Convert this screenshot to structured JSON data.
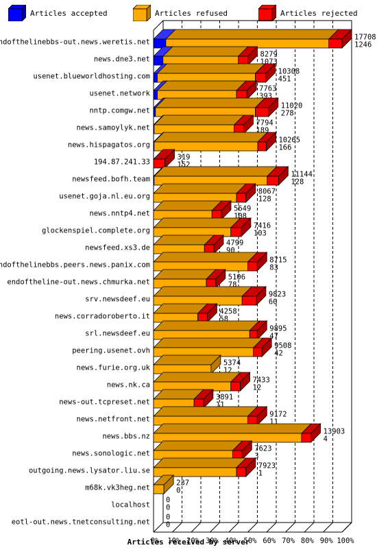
{
  "chart_data": {
    "type": "bar",
    "orientation": "horizontal",
    "stacked": true,
    "xlabel": "Articles received by server",
    "xlim": [
      0,
      100
    ],
    "x_ticks": [
      "0%",
      "10%",
      "20%",
      "30%",
      "40%",
      "50%",
      "60%",
      "70%",
      "80%",
      "90%",
      "100%"
    ],
    "legend_placement": "top",
    "grid": "vertical-dashed",
    "series": [
      {
        "name": "Articles accepted",
        "color": "#0000ff"
      },
      {
        "name": "Articles refused",
        "color": "#ffaa00"
      },
      {
        "name": "Articles rejected",
        "color": "#ff0000"
      }
    ],
    "categories": [
      "endofthelinebbs-out.news.weretis.net",
      "news.dne3.net",
      "usenet.blueworldhosting.com",
      "usenet.network",
      "nntp.comgw.net",
      "news.samoylyk.net",
      "news.hispagatos.org",
      "194.87.241.33",
      "newsfeed.bofh.team",
      "usenet.goja.nl.eu.org",
      "news.nntp4.net",
      "glockenspiel.complete.org",
      "newsfeed.xs3.de",
      "endofthelinebbs.peers.news.panix.com",
      "endoftheline-out.news.chmurka.net",
      "srv.newsdeef.eu",
      "news.corradoroberto.it",
      "srl.newsdeef.eu",
      "peering.usenet.ovh",
      "news.furie.org.uk",
      "news.nk.ca",
      "news-out.tcpreset.net",
      "news.netfront.net",
      "news.bbs.nz",
      "news.sonologic.net",
      "outgoing.news.lysator.liu.se",
      "m68k.vk3heg.net",
      "localhost",
      "eotl-out.news.tnetconsulting.net"
    ],
    "totals": [
      17708,
      8279,
      10308,
      7763,
      11020,
      7794,
      10265,
      319,
      11144,
      8067,
      5649,
      7416,
      4799,
      8715,
      5106,
      9823,
      4258,
      9895,
      9508,
      5374,
      7433,
      3891,
      9172,
      13903,
      7623,
      7923,
      237,
      0,
      0
    ],
    "rejected_counts": [
      1246,
      1073,
      451,
      393,
      278,
      189,
      166,
      152,
      128,
      128,
      108,
      103,
      90,
      83,
      78,
      60,
      58,
      47,
      42,
      12,
      12,
      11,
      11,
      4,
      3,
      1,
      0,
      0,
      0
    ],
    "accepted_pct": [
      6.5,
      5.0,
      2.0,
      2.0,
      1.0,
      0.3,
      0.3,
      0,
      0.3,
      0,
      0,
      0,
      0,
      0,
      0,
      0,
      0,
      0,
      0,
      0,
      0,
      0,
      0,
      0,
      0,
      0,
      0,
      0,
      0
    ],
    "refused_pct": [
      86.5,
      40.0,
      52.0,
      42.0,
      53.0,
      42.5,
      55.0,
      0,
      60.0,
      44.0,
      31.0,
      41.0,
      27.0,
      50.0,
      28.0,
      47.0,
      23.5,
      51.0,
      53.0,
      30.5,
      41.0,
      21.5,
      50.0,
      78.5,
      42.0,
      44.0,
      5.5,
      0,
      0
    ],
    "rejected_pct": [
      7.0,
      5.0,
      5.5,
      5.5,
      7.0,
      5.0,
      4.5,
      6.0,
      6.0,
      5.0,
      5.0,
      5.5,
      5.0,
      5.0,
      5.0,
      7.5,
      5.0,
      4.0,
      4.5,
      0,
      5.0,
      5.0,
      5.0,
      5.0,
      5.0,
      5.0,
      0,
      0,
      0
    ]
  }
}
